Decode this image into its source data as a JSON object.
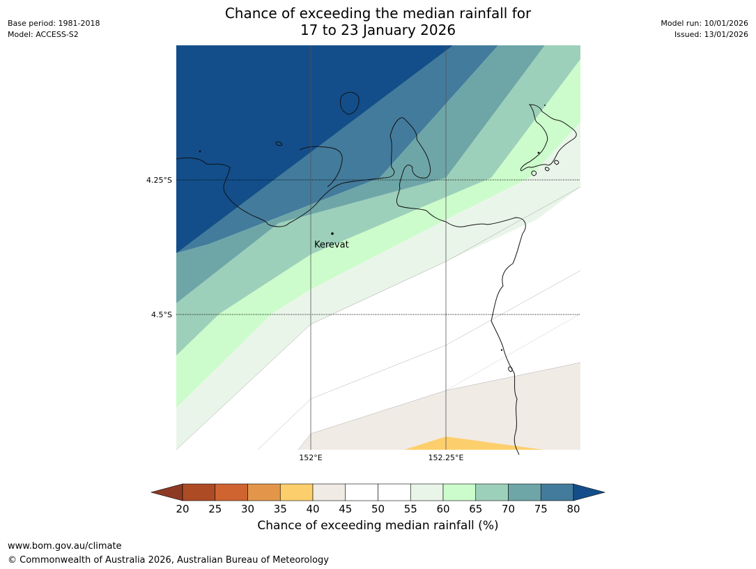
{
  "title": {
    "line1": "Chance of exceeding the median rainfall for",
    "line2": "17 to 23 January 2026"
  },
  "meta_left": {
    "base_period": "Base period: 1981-2018",
    "model": "Model: ACCESS-S2"
  },
  "meta_right": {
    "model_run": "Model run: 10/01/2026",
    "issued": "Issued: 13/01/2026"
  },
  "map": {
    "lat_labels": [
      "4.25°S",
      "4.5°S"
    ],
    "lon_labels": [
      "152°E",
      "152.25°E"
    ],
    "place": "Kerevat",
    "band_colors": {
      "c80": "#134e8a",
      "c75": "#437b9c",
      "c70": "#6ea6a8",
      "c65": "#9dd0ba",
      "c60": "#ccfccb",
      "c55": "#eaf5e9",
      "c50": "#ffffff",
      "c45": "#ffffff",
      "c40": "#f0ebe5",
      "c35": "#fdcf6c"
    }
  },
  "colorbar": {
    "ticks": [
      "20",
      "25",
      "30",
      "35",
      "40",
      "45",
      "50",
      "55",
      "60",
      "65",
      "70",
      "75",
      "80"
    ],
    "colors": [
      "#ad4b25",
      "#cf6431",
      "#e3964a",
      "#fdcf6c",
      "#f0ebe5",
      "#ffffff",
      "#ffffff",
      "#eaf5e9",
      "#ccfccb",
      "#9dd0ba",
      "#6ea6a8",
      "#437b9c"
    ],
    "under_color": "#8d3a25",
    "over_color": "#134e8a",
    "label": "Chance of exceeding median rainfall (%)"
  },
  "footer": {
    "website": "www.bom.gov.au/climate",
    "copyright": "© Commonwealth of Australia 2026, Australian Bureau of Meteorology"
  }
}
